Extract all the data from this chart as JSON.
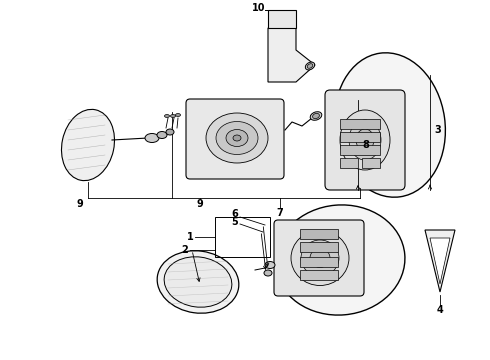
{
  "background": "#ffffff",
  "line_color": "#000000",
  "gray_fill": "#d8d8d8",
  "light_fill": "#efefef",
  "mid_fill": "#c8c8c8"
}
